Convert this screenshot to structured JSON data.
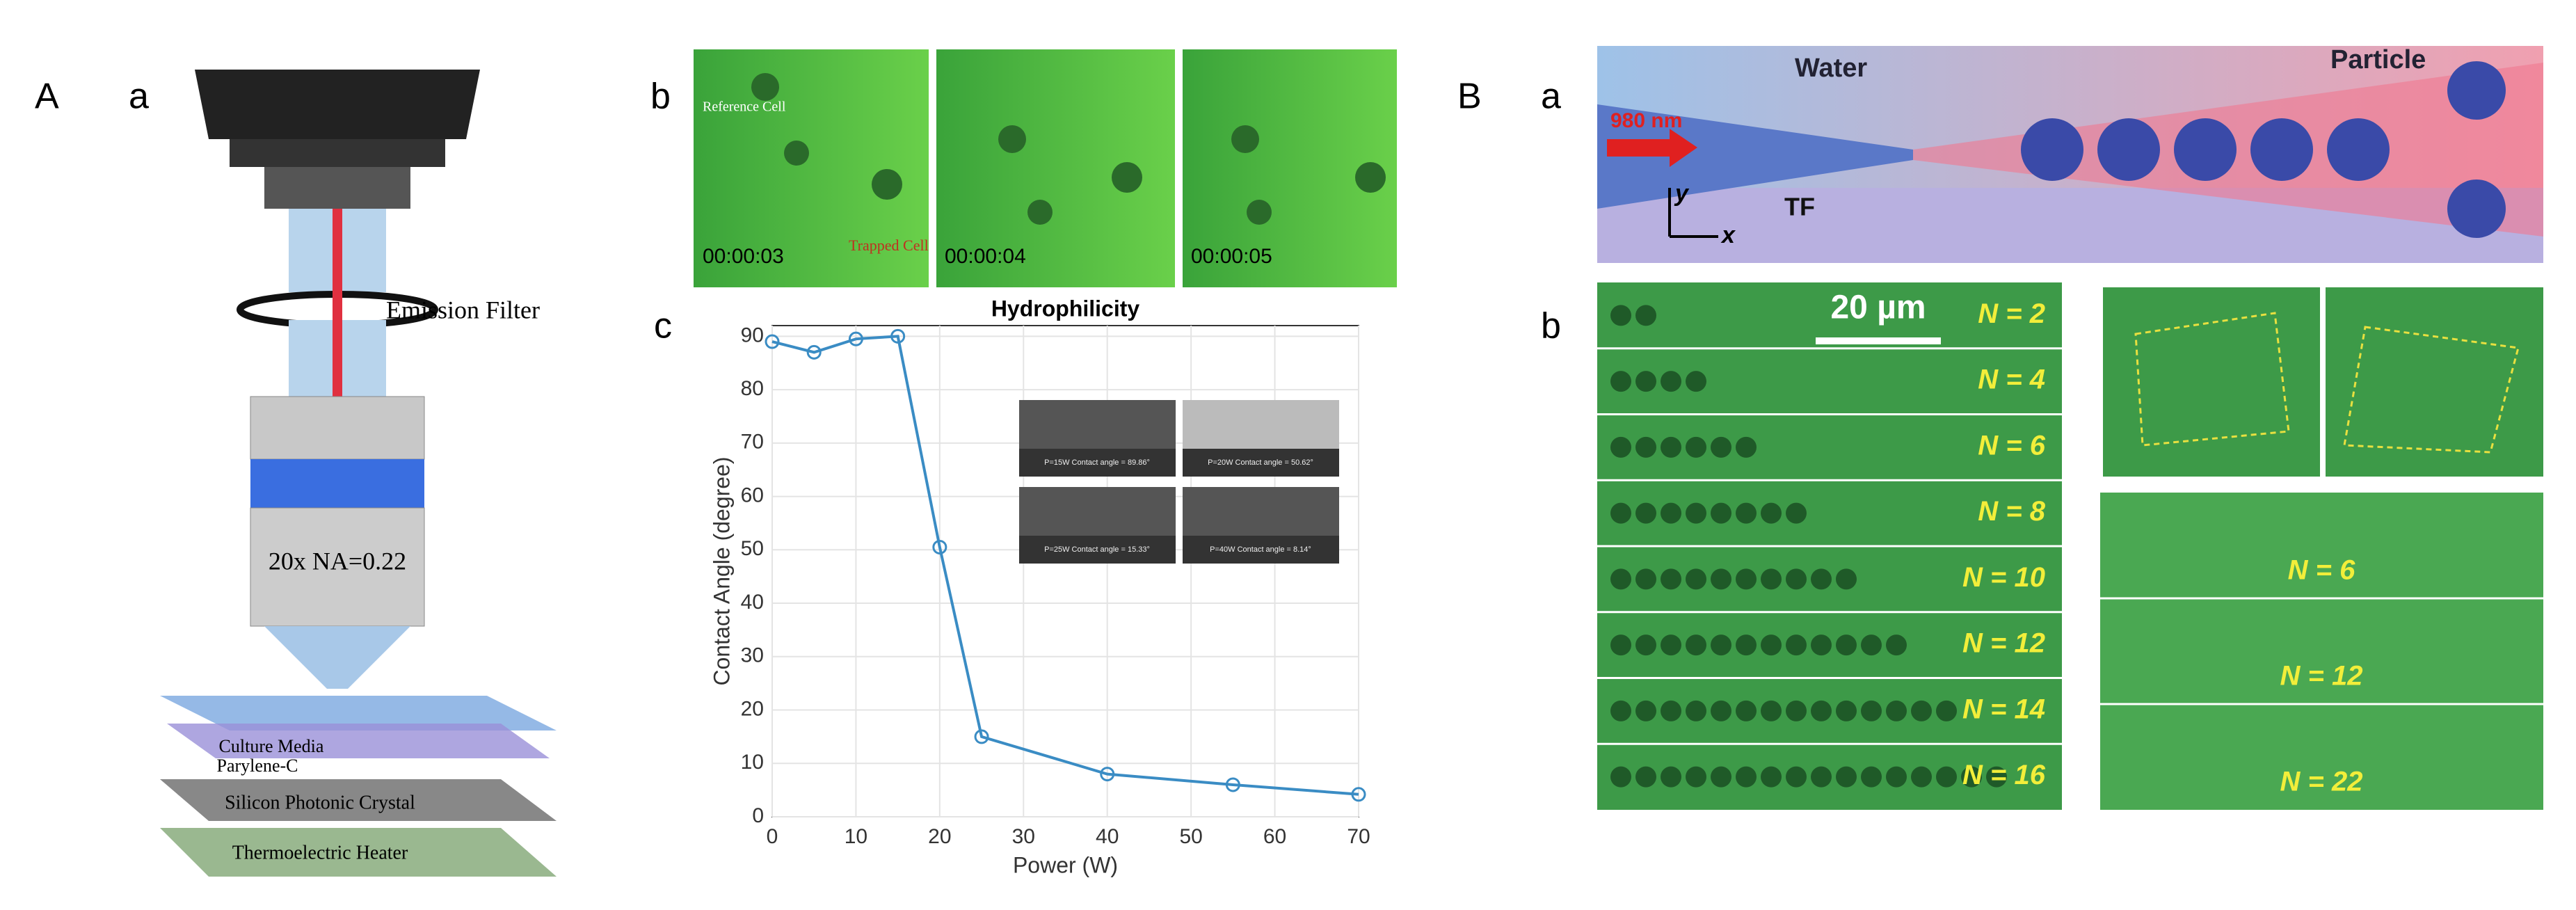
{
  "panel_labels": [
    "A",
    "a",
    "b",
    "c",
    "B",
    "a",
    "b"
  ],
  "panel_A": {
    "emission_filter": "Emission Filter",
    "objective": "20x NA=0.22",
    "layers": [
      "Culture Media",
      "Parylene-C",
      "Silicon Photonic Crystal",
      "Thermoelectric Heater"
    ]
  },
  "panel_b": {
    "reference": "Reference Cell",
    "trapped": "Trapped Cell",
    "times": [
      "00:00:03",
      "00:00:04",
      "00:00:05"
    ]
  },
  "panel_Ba": {
    "water": "Water",
    "particle": "Particle",
    "laser": "980 nm",
    "fiber": "TF",
    "y_axis": "y",
    "x_axis": "x"
  },
  "panel_Bb": {
    "scale": "20 µm",
    "chain_labels": [
      "N = 2",
      "N = 4",
      "N = 6",
      "N = 8",
      "N = 10",
      "N = 12",
      "N = 14",
      "N = 16"
    ],
    "cluster_labels": [
      "N = 6",
      "N = 12",
      "N = 22"
    ]
  },
  "chart_data": {
    "type": "line",
    "title": "Hydrophilicity",
    "x_label": "Power (W)",
    "y_label": "Contact Angle (degree)",
    "x": [
      0,
      5,
      10,
      15,
      20,
      25,
      40,
      55,
      70
    ],
    "series": [
      {
        "name": "Contact angle",
        "color": "#3a8cc4",
        "values": [
          89,
          87,
          89.5,
          90,
          50.5,
          15,
          8,
          6,
          4.2
        ]
      }
    ],
    "xlim": [
      0,
      70
    ],
    "xticks": [
      0,
      10,
      20,
      30,
      40,
      50,
      60,
      70
    ],
    "ylim": [
      0,
      92
    ],
    "yticks": [
      0,
      10,
      20,
      30,
      40,
      50,
      60,
      70,
      80,
      90
    ],
    "insets": [
      "P=15W Contact angle = 89.86°",
      "P=20W Contact angle = 50.62°",
      "P=25W Contact angle = 15.33°",
      "P=40W Contact angle = 8.14°"
    ]
  }
}
